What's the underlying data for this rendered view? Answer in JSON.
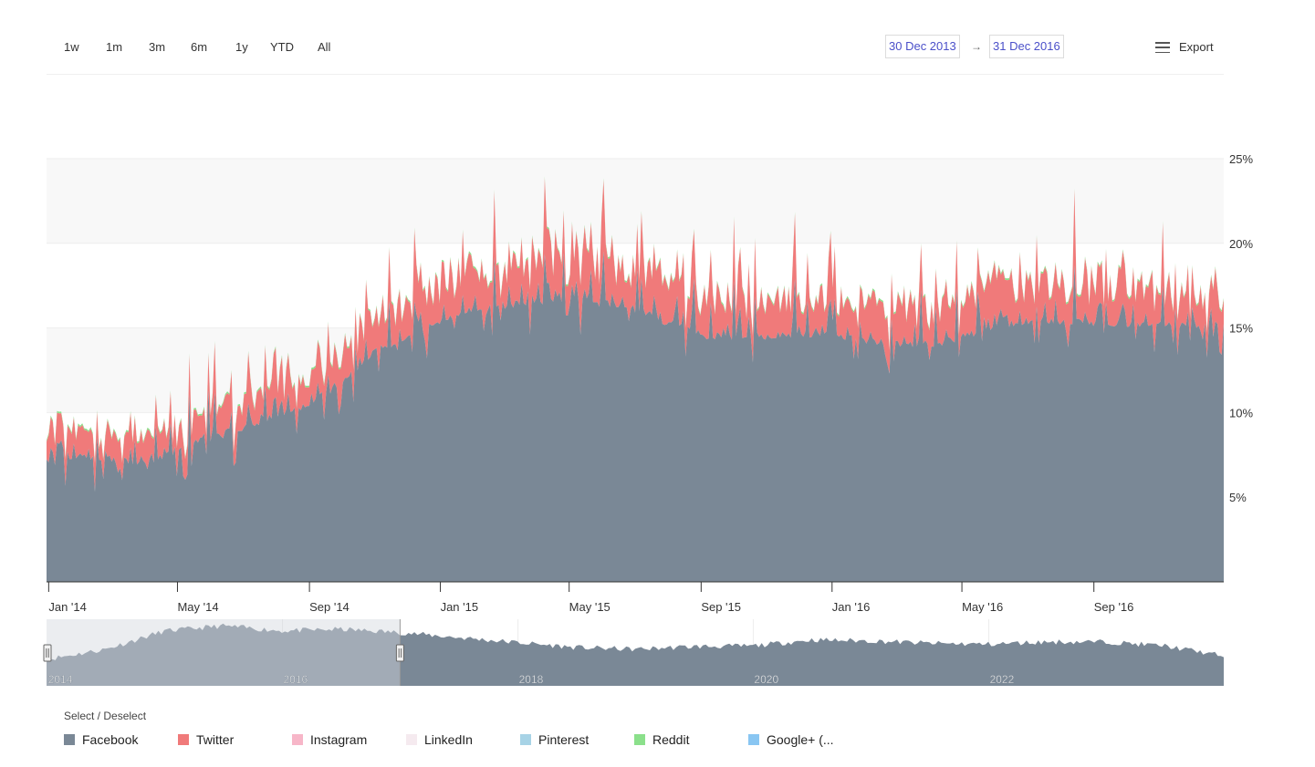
{
  "toolbar": {
    "ranges": [
      "1w",
      "1m",
      "3m",
      "6m",
      "1y",
      "YTD",
      "All"
    ],
    "from_date": "30 Dec 2013",
    "arrow": "→",
    "to_date": "31 Dec 2016",
    "export_label": "Export",
    "export_icon": "menu-icon"
  },
  "legend": {
    "select_label": "Select / Deselect",
    "items": [
      {
        "label": "Facebook",
        "color": "#7a8896"
      },
      {
        "label": "Twitter",
        "color": "#f07a7a"
      },
      {
        "label": "Instagram",
        "color": "#f7b6c8"
      },
      {
        "label": "LinkedIn",
        "color": "#f5eaef"
      },
      {
        "label": "Pinterest",
        "color": "#a7d3e6"
      },
      {
        "label": "Reddit",
        "color": "#8be08b"
      },
      {
        "label": "Google+ (...",
        "color": "#89c6f2"
      }
    ]
  },
  "chart_data": {
    "type": "area",
    "stacked": true,
    "x_range": [
      "2013-12-30",
      "2016-12-31"
    ],
    "x_ticks": [
      "Jan '14",
      "May '14",
      "Sep '14",
      "Jan '15",
      "May '15",
      "Sep '15",
      "Jan '16",
      "May '16",
      "Sep '16"
    ],
    "y_ticks": [
      "5%",
      "10%",
      "15%",
      "20%",
      "25%"
    ],
    "ylim": [
      0,
      25
    ],
    "y_axis_side": "right",
    "series": [
      {
        "name": "Facebook",
        "color": "#7a8896",
        "x": [
          "2014-01-01",
          "2014-02-01",
          "2014-03-01",
          "2014-04-01",
          "2014-05-01",
          "2014-06-01",
          "2014-07-01",
          "2014-08-01",
          "2014-09-01",
          "2014-10-01",
          "2014-11-01",
          "2014-12-01",
          "2015-01-01",
          "2015-02-01",
          "2015-03-01",
          "2015-04-01",
          "2015-05-01",
          "2015-06-01",
          "2015-07-01",
          "2015-08-01",
          "2015-09-01",
          "2015-10-01",
          "2015-11-01",
          "2015-12-01",
          "2016-01-01",
          "2016-02-01",
          "2016-03-01",
          "2016-04-01",
          "2016-05-01",
          "2016-06-01",
          "2016-07-01",
          "2016-08-01",
          "2016-09-01",
          "2016-10-01",
          "2016-11-01",
          "2016-12-01"
        ],
        "values": [
          6.8,
          7.2,
          7.0,
          6.8,
          7.6,
          8.3,
          8.9,
          9.6,
          10.2,
          11.6,
          13.4,
          14.3,
          15.2,
          16.0,
          16.1,
          16.3,
          16.6,
          16.2,
          15.9,
          15.1,
          14.4,
          14.2,
          14.3,
          14.4,
          14.3,
          14.0,
          13.9,
          13.6,
          14.3,
          14.8,
          15.2,
          15.2,
          15.1,
          15.0,
          15.0,
          15.0
        ]
      },
      {
        "name": "Twitter",
        "color": "#f07a7a",
        "x": [
          "2014-01-01",
          "2014-02-01",
          "2014-03-01",
          "2014-04-01",
          "2014-05-01",
          "2014-06-01",
          "2014-07-01",
          "2014-08-01",
          "2014-09-01",
          "2014-10-01",
          "2014-11-01",
          "2014-12-01",
          "2015-01-01",
          "2015-02-01",
          "2015-03-01",
          "2015-04-01",
          "2015-05-01",
          "2015-06-01",
          "2015-07-01",
          "2015-08-01",
          "2015-09-01",
          "2015-10-01",
          "2015-11-01",
          "2015-12-01",
          "2016-01-01",
          "2016-02-01",
          "2016-03-01",
          "2016-04-01",
          "2016-05-01",
          "2016-06-01",
          "2016-07-01",
          "2016-08-01",
          "2016-09-01",
          "2016-10-01",
          "2016-11-01",
          "2016-12-01"
        ],
        "values": [
          1.2,
          1.2,
          1.2,
          1.2,
          1.3,
          1.4,
          1.5,
          1.6,
          1.7,
          1.8,
          2.0,
          2.0,
          2.2,
          2.3,
          2.3,
          2.3,
          2.3,
          2.3,
          2.2,
          2.1,
          2.0,
          2.0,
          2.0,
          2.0,
          2.0,
          1.9,
          1.9,
          1.9,
          2.0,
          2.1,
          2.1,
          2.1,
          2.1,
          2.1,
          2.1,
          2.1
        ]
      },
      {
        "name": "Reddit",
        "color": "#8be08b",
        "x": [
          "2014-01-01",
          "2014-07-01",
          "2015-01-01",
          "2015-07-01",
          "2016-01-01",
          "2016-07-01",
          "2016-12-01"
        ],
        "values": [
          0.1,
          0.1,
          0.1,
          0.1,
          0.1,
          0.1,
          0.1
        ]
      }
    ],
    "navigator": {
      "x_labels": [
        "2014",
        "2016",
        "2018",
        "2020",
        "2022"
      ],
      "x_range": [
        "2013-12-30",
        "2023-12-31"
      ],
      "selected": [
        "2013-12-30",
        "2016-12-31"
      ],
      "x": [
        "2014-01-01",
        "2014-07-01",
        "2015-01-01",
        "2015-07-01",
        "2016-01-01",
        "2016-07-01",
        "2017-01-01",
        "2017-07-01",
        "2018-01-01",
        "2018-07-01",
        "2019-01-01",
        "2019-07-01",
        "2020-01-01",
        "2020-07-01",
        "2021-01-01",
        "2021-07-01",
        "2022-01-01",
        "2022-07-01",
        "2023-01-01",
        "2023-07-01",
        "2023-12-31"
      ],
      "values": [
        8.0,
        11.0,
        16.5,
        18.0,
        16.5,
        17.0,
        16.0,
        14.5,
        13.0,
        11.5,
        11.0,
        11.8,
        12.0,
        13.8,
        13.5,
        12.8,
        12.5,
        13.2,
        13.2,
        12.0,
        9.0
      ]
    }
  }
}
